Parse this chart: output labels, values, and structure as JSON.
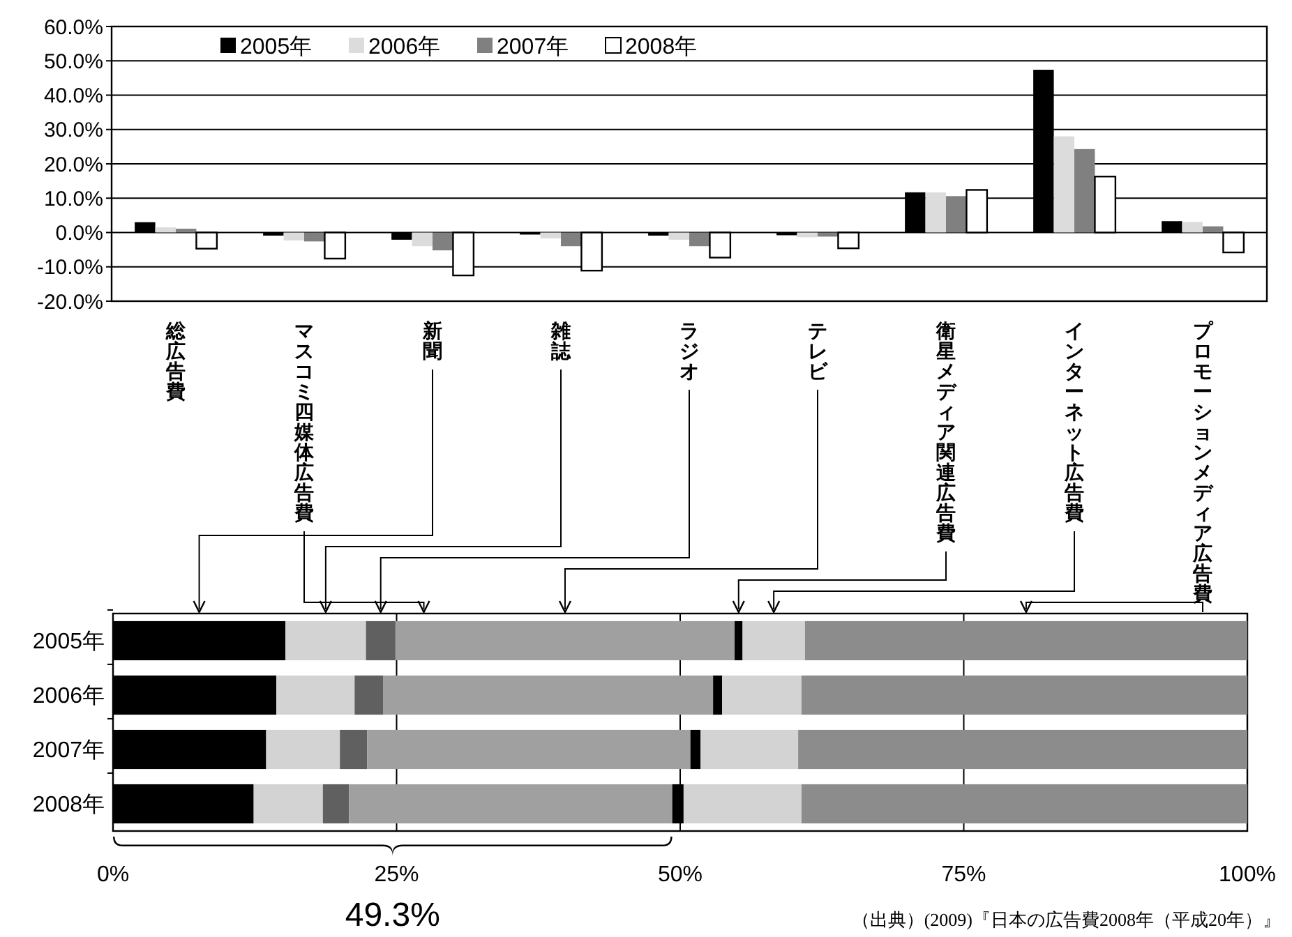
{
  "chart_data": [
    {
      "type": "bar",
      "categories": [
        "総広告費",
        "マスコミ四媒体広告費",
        "新聞",
        "雑誌",
        "ラジオ",
        "テレビ",
        "衛星メディア関連広告費",
        "インターネット広告費",
        "プロモーションメディア広告費"
      ],
      "series": [
        {
          "name": "2005年",
          "color": "#000000",
          "values": [
            3.0,
            -0.9,
            -2.1,
            -0.6,
            -0.9,
            -0.8,
            11.7,
            47.4,
            3.3
          ]
        },
        {
          "name": "2006年",
          "color": "#dcdcdc",
          "values": [
            1.5,
            -2.3,
            -4.0,
            -1.7,
            -2.1,
            -1.4,
            11.7,
            28.0,
            3.1
          ]
        },
        {
          "name": "2007年",
          "color": "#808080",
          "values": [
            1.1,
            -2.6,
            -5.2,
            -4.0,
            -4.0,
            -1.2,
            10.6,
            24.3,
            1.8
          ]
        },
        {
          "name": "2008年",
          "color": "#ffffff",
          "values": [
            -4.7,
            -7.6,
            -12.5,
            -11.1,
            -7.3,
            -4.6,
            12.4,
            16.3,
            -5.8
          ]
        }
      ],
      "ylim": [
        -20,
        60
      ],
      "yticks": [
        {
          "value": -20,
          "label": "-20.0%"
        },
        {
          "value": -10,
          "label": "-10.0%"
        },
        {
          "value": 0,
          "label": "0.0%"
        },
        {
          "value": 10,
          "label": "10.0%"
        },
        {
          "value": 20,
          "label": "20.0%"
        },
        {
          "value": 30,
          "label": "30.0%"
        },
        {
          "value": 40,
          "label": "40.0%"
        },
        {
          "value": 50,
          "label": "50.0%"
        },
        {
          "value": 60,
          "label": "60.0%"
        }
      ],
      "grid": "y",
      "legend": "top left"
    },
    {
      "type": "bar",
      "orientation": "horizontal",
      "stacked": true,
      "categories": [
        "2005年",
        "2006年",
        "2007年",
        "2008年"
      ],
      "series": [
        {
          "color": "#000000",
          "values": [
            15.2,
            14.4,
            13.5,
            12.4
          ]
        },
        {
          "color": "#d3d3d3",
          "values": [
            7.1,
            6.9,
            6.5,
            6.1
          ]
        },
        {
          "color": "#606060",
          "values": [
            2.6,
            2.5,
            2.4,
            2.3
          ]
        },
        {
          "color": "#a0a0a0",
          "values": [
            29.9,
            29.1,
            28.5,
            28.5
          ]
        },
        {
          "color": "#000000",
          "values": [
            0.7,
            0.8,
            0.9,
            1.0
          ]
        },
        {
          "color": "#d3d3d3",
          "values": [
            5.5,
            7.0,
            8.6,
            10.4
          ]
        },
        {
          "color": "#8c8c8c",
          "values": [
            39.0,
            39.3,
            39.6,
            39.3
          ]
        }
      ],
      "xlim": [
        0,
        100
      ],
      "xticks": [
        {
          "value": 0,
          "label": "0%"
        },
        {
          "value": 25,
          "label": "25%"
        },
        {
          "value": 50,
          "label": "50%"
        },
        {
          "value": 75,
          "label": "75%"
        },
        {
          "value": 100,
          "label": "100%"
        }
      ],
      "grid": "x",
      "annotations": [
        "49.3%",
        "（出典）(2009)『日本の広告費2008年（平成20年）』"
      ]
    }
  ]
}
